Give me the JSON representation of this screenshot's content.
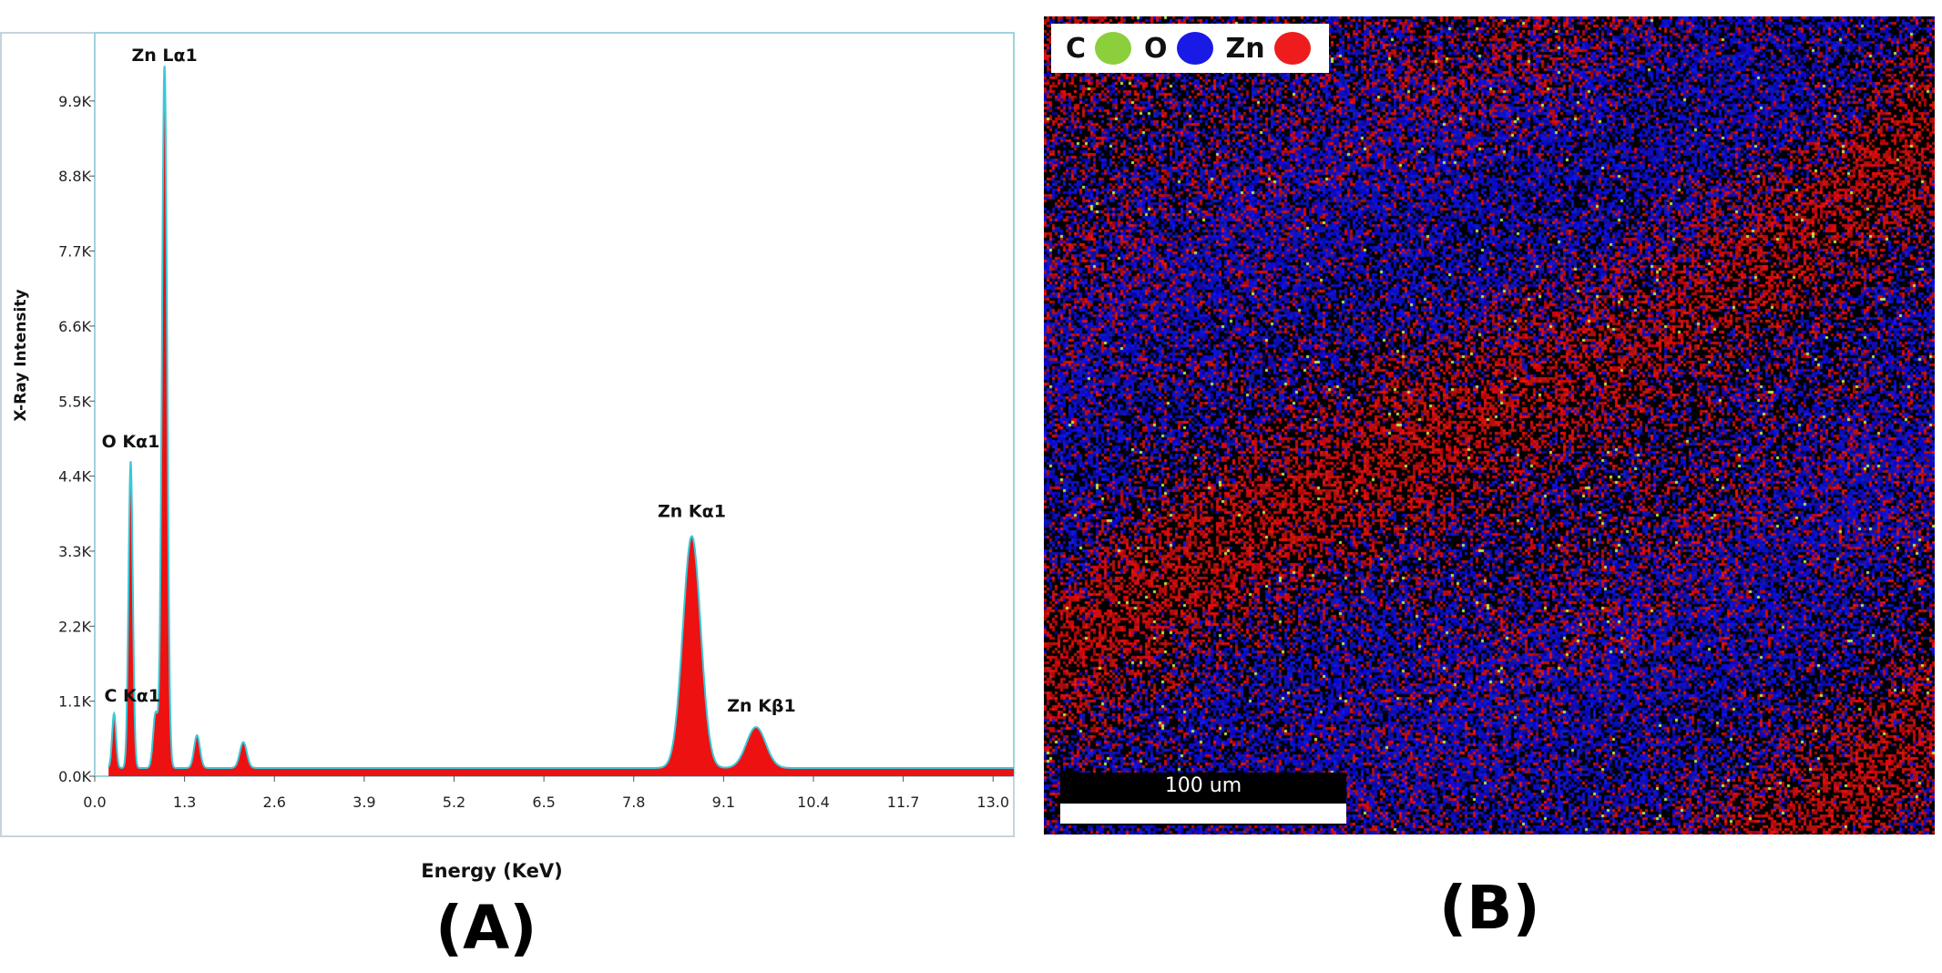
{
  "chart_data": {
    "type": "area",
    "xlabel": "Energy (KeV)",
    "ylabel": "X-Ray Intensity",
    "xlim": [
      0,
      13.3
    ],
    "ylim": [
      0,
      10900
    ],
    "x_ticks": [
      "0.0",
      "1.3",
      "2.6",
      "3.9",
      "5.2",
      "6.5",
      "7.8",
      "9.1",
      "10.4",
      "11.7",
      "13.0"
    ],
    "y_ticks": [
      "0.0K",
      "1.1K",
      "2.2K",
      "3.3K",
      "4.4K",
      "5.5K",
      "6.6K",
      "7.7K",
      "8.8K",
      "9.9K"
    ],
    "peaks": [
      {
        "label": "C  Kα1",
        "energy": 0.28,
        "intensity": 800
      },
      {
        "label": "O  Kα1",
        "energy": 0.52,
        "intensity": 4500
      },
      {
        "label": "Zn Lα1",
        "energy": 1.01,
        "intensity": 10300
      },
      {
        "label": "Zn Kα1",
        "energy": 8.64,
        "intensity": 3400
      },
      {
        "label": "Zn Kβ1",
        "energy": 9.57,
        "intensity": 600
      }
    ],
    "minor_peaks": [
      {
        "energy": 0.88,
        "intensity": 800
      },
      {
        "energy": 1.48,
        "intensity": 480
      },
      {
        "energy": 2.15,
        "intensity": 380
      }
    ],
    "background_level": 120,
    "fill_color": "#ee1111",
    "outline_color": "#39c8d8"
  },
  "map": {
    "legend": [
      {
        "symbol": "C",
        "color": "#8ccf3c"
      },
      {
        "symbol": "O",
        "color": "#1a1ae6"
      },
      {
        "symbol": "Zn",
        "color": "#ee1c1c"
      }
    ],
    "scale_bar_label": "100 um"
  },
  "panels": {
    "a": "(A)",
    "b": "(B)"
  }
}
